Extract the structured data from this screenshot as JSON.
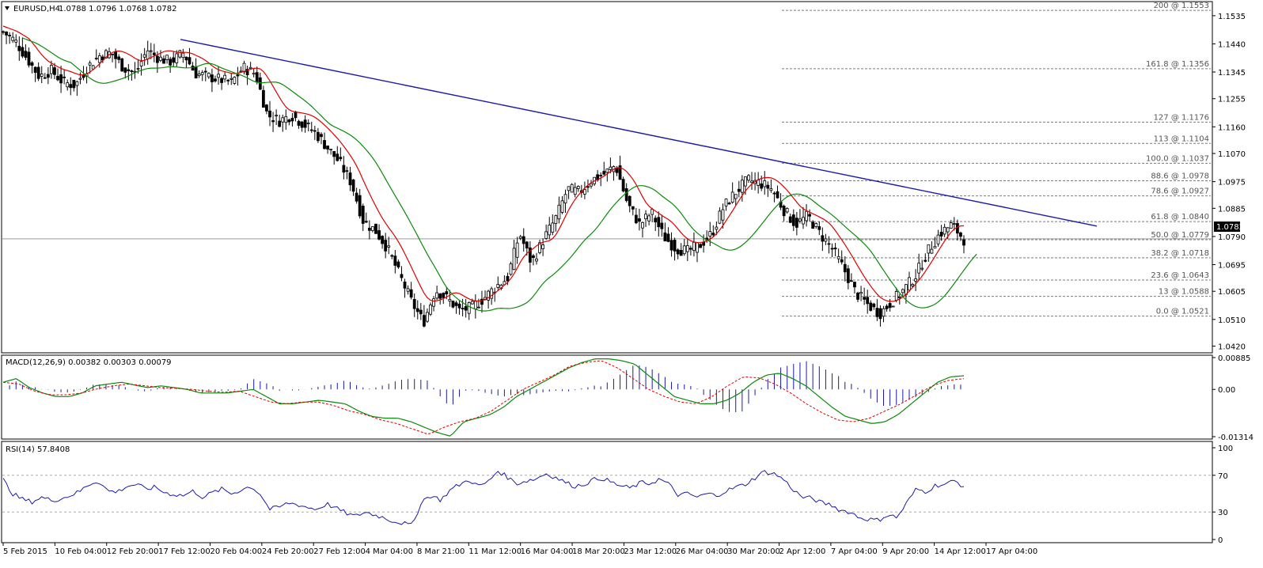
{
  "chart_data": [
    {
      "type": "candlestick",
      "header": {
        "symbol": "EURUSD,H4",
        "ohlc": "1.0788 1.0796 1.0768 1.0782"
      },
      "price_axis": {
        "ticks": [
          "1.1535",
          "1.1440",
          "1.1345",
          "1.1255",
          "1.1160",
          "1.1070",
          "1.0975",
          "1.0885",
          "1.0790",
          "1.0695",
          "1.0605",
          "1.0510",
          "1.0420"
        ],
        "range": [
          1.04,
          1.158
        ],
        "current_price": "1.0782"
      },
      "time_axis": {
        "labels": [
          "5 Feb 2015",
          "10 Feb 04:00",
          "12 Feb 20:00",
          "17 Feb 12:00",
          "20 Feb 04:00",
          "24 Feb 20:00",
          "27 Feb 12:00",
          "4 Mar 04:00",
          "8 Mar 21:00",
          "11 Mar 12:00",
          "16 Mar 04:00",
          "18 Mar 20:00",
          "23 Mar 12:00",
          "26 Mar 04:00",
          "30 Mar 20:00",
          "2 Apr 12:00",
          "7 Apr 04:00",
          "9 Apr 20:00",
          "14 Apr 12:00",
          "17 Apr 04:00"
        ]
      },
      "fibonacci_levels": [
        {
          "label": "200 @ 1.1553",
          "price": 1.1553
        },
        {
          "label": "161.8 @ 1.1356",
          "price": 1.1356
        },
        {
          "label": "127 @ 1.1176",
          "price": 1.1176
        },
        {
          "label": "113 @ 1.1104",
          "price": 1.1104
        },
        {
          "label": "100.0 @ 1.1037",
          "price": 1.1037
        },
        {
          "label": "88.6 @ 1.0978",
          "price": 1.0978
        },
        {
          "label": "78.6 @ 1.0927",
          "price": 1.0927
        },
        {
          "label": "61.8 @ 1.0840",
          "price": 1.084
        },
        {
          "label": "50.0 @ 1.0779",
          "price": 1.0779
        },
        {
          "label": "38.2 @ 1.0718",
          "price": 1.0718
        },
        {
          "label": "23.6 @ 1.0643",
          "price": 1.0643
        },
        {
          "label": "13 @ 1.0588",
          "price": 1.0588
        },
        {
          "label": "0.0 @ 1.0521",
          "price": 1.0521
        }
      ],
      "trendline": {
        "start_price": 1.1455,
        "end_price": 1.0825
      },
      "price_path": [
        1.148,
        1.145,
        1.139,
        1.133,
        1.135,
        1.131,
        1.13,
        1.136,
        1.14,
        1.141,
        1.136,
        1.134,
        1.142,
        1.139,
        1.138,
        1.141,
        1.134,
        1.133,
        1.132,
        1.131,
        1.136,
        1.134,
        1.12,
        1.118,
        1.12,
        1.117,
        1.114,
        1.109,
        1.104,
        1.097,
        1.084,
        1.081,
        1.075,
        1.066,
        1.057,
        1.05,
        1.061,
        1.058,
        1.054,
        1.055,
        1.058,
        1.062,
        1.065,
        1.08,
        1.07,
        1.078,
        1.085,
        1.095,
        1.094,
        1.098,
        1.1,
        1.103,
        1.09,
        1.083,
        1.087,
        1.079,
        1.075,
        1.074,
        1.076,
        1.08,
        1.089,
        1.094,
        1.098,
        1.097,
        1.095,
        1.088,
        1.083,
        1.086,
        1.08,
        1.075,
        1.068,
        1.06,
        1.056,
        1.053,
        1.057,
        1.061,
        1.066,
        1.074,
        1.08,
        1.083,
        1.078
      ],
      "colors": {
        "trendline": "#1a1aaa",
        "ma_fast": "#e00000",
        "ma_slow": "#0a8a0a",
        "ma_crossover": "#e8e800",
        "candle": "#000000",
        "fib_line": "#7a7a7a",
        "current_price_line": "#9a9a9a"
      }
    },
    {
      "type": "macd",
      "label": "MACD(12,26,9) 0.00382 0.00303 0.00079",
      "ticks": [
        "0.00885",
        "0.00",
        "-0.01314"
      ],
      "range": [
        -0.01314,
        0.00885
      ],
      "macd_path": [
        0.002,
        0.003,
        0.0005,
        -0.001,
        -0.002,
        -0.002,
        -0.001,
        0.001,
        0.0015,
        0.002,
        0.0012,
        0.0005,
        0.001,
        0.0005,
        0.0,
        -0.001,
        -0.001,
        -0.001,
        -0.0005,
        0.0,
        -0.002,
        -0.004,
        -0.004,
        -0.0035,
        -0.003,
        -0.0035,
        -0.004,
        -0.006,
        -0.0075,
        -0.008,
        -0.008,
        -0.009,
        -0.0105,
        -0.012,
        -0.013,
        -0.009,
        -0.008,
        -0.007,
        -0.005,
        -0.002,
        0.0,
        0.002,
        0.004,
        0.006,
        0.0075,
        0.0085,
        0.0085,
        0.008,
        0.007,
        0.004,
        0.001,
        -0.002,
        -0.003,
        -0.004,
        -0.004,
        -0.003,
        -0.001,
        0.002,
        0.004,
        0.0045,
        0.003,
        0.001,
        -0.002,
        -0.005,
        -0.0075,
        -0.0085,
        -0.0095,
        -0.009,
        -0.007,
        -0.004,
        -0.001,
        0.002,
        0.0035,
        0.0038
      ],
      "signal_path": [
        0.002,
        0.0015,
        -0.0005,
        -0.0015,
        -0.0015,
        -0.001,
        0.0002,
        0.001,
        0.0015,
        0.001,
        0.0005,
        0.0003,
        0.0,
        -0.0005,
        -0.0008,
        -0.0005,
        -0.002,
        -0.0035,
        -0.004,
        -0.0035,
        -0.0035,
        -0.0045,
        -0.006,
        -0.007,
        -0.0085,
        -0.0095,
        -0.011,
        -0.0125,
        -0.0105,
        -0.009,
        -0.008,
        -0.006,
        -0.003,
        0.0,
        0.002,
        0.004,
        0.0065,
        0.0075,
        0.008,
        0.006,
        0.003,
        0.0,
        -0.002,
        -0.0035,
        -0.004,
        -0.002,
        0.001,
        0.0035,
        0.0032,
        0.0015,
        -0.001,
        -0.004,
        -0.0065,
        -0.0085,
        -0.009,
        -0.008,
        -0.006,
        -0.004,
        -0.0015,
        0.001,
        0.0025,
        0.003
      ],
      "colors": {
        "macd": "#0a8a0a",
        "signal": "#e00000",
        "histogram": "#1a1aaa"
      }
    },
    {
      "type": "rsi",
      "label": "RSI(14) 57.8408",
      "ticks": [
        "100",
        "70",
        "30",
        "0"
      ],
      "range": [
        0,
        100
      ],
      "levels": [
        70,
        30
      ],
      "values": [
        65,
        50,
        44,
        41,
        46,
        43,
        44,
        48,
        52,
        60,
        64,
        53,
        52,
        58,
        60,
        55,
        57,
        51,
        49,
        48,
        53,
        46,
        51,
        55,
        50,
        54,
        58,
        50,
        33,
        35,
        40,
        38,
        35,
        33,
        39,
        34,
        29,
        25,
        30,
        27,
        24,
        20,
        18,
        15,
        42,
        48,
        43,
        54,
        60,
        65,
        58,
        63,
        75,
        68,
        61,
        64,
        66,
        72,
        68,
        63,
        58,
        60,
        65,
        67,
        62,
        58,
        56,
        62,
        61,
        66,
        60,
        48,
        50,
        46,
        50,
        48,
        53,
        57,
        60,
        67,
        74,
        72,
        66,
        55,
        46,
        45,
        40,
        38,
        32,
        30,
        24,
        22,
        21,
        27,
        24,
        40,
        55,
        52,
        59,
        60,
        64,
        58
      ],
      "colors": {
        "line": "#1a1aaa",
        "level_line": "#aaaaaa"
      }
    }
  ]
}
